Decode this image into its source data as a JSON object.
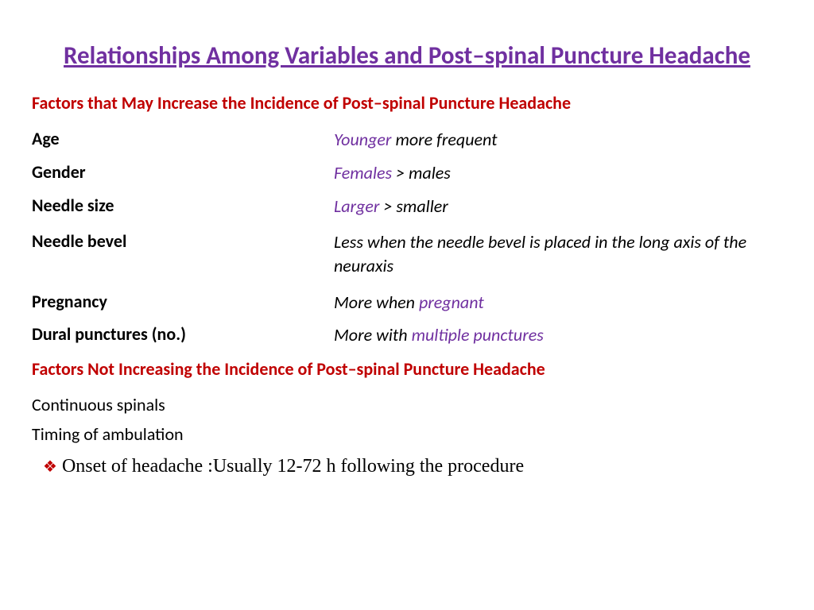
{
  "colors": {
    "title": "#7030a0",
    "section_header": "#c00000",
    "body_text": "#000000",
    "highlight": "#7030a0",
    "bullet": "#c00000"
  },
  "fonts": {
    "title_size": 31,
    "section_size": 22,
    "body_size": 22,
    "onset_size": 24
  },
  "title": "Relationships Among Variables and Post–spinal Puncture Headache",
  "section1": {
    "header": "Factors that May Increase the Incidence of Post–spinal Puncture Headache",
    "rows": [
      {
        "label": "Age",
        "pre": "",
        "hl": "Younger",
        "post": " more frequent"
      },
      {
        "label": "Gender",
        "pre": "",
        "hl": "Females",
        "post": " > males"
      },
      {
        "label": "Needle size",
        "pre": "",
        "hl": "Larger",
        "post": " > smaller"
      },
      {
        "label": "Needle bevel",
        "pre": "Less when the needle bevel is placed in the long axis of the neuraxis",
        "hl": "",
        "post": ""
      },
      {
        "label": "Pregnancy",
        "pre": "More when ",
        "hl": "pregnant",
        "post": ""
      },
      {
        "label": "Dural punctures (no.)",
        "pre": "More with ",
        "hl": "multiple punctures",
        "post": ""
      }
    ]
  },
  "section2": {
    "header": "Factors Not Increasing the Incidence of Post–spinal Puncture Headache",
    "items": [
      "Continuous spinals",
      "Timing of ambulation"
    ]
  },
  "onset": "Onset of headache :Usually 12-72 h following the procedure"
}
